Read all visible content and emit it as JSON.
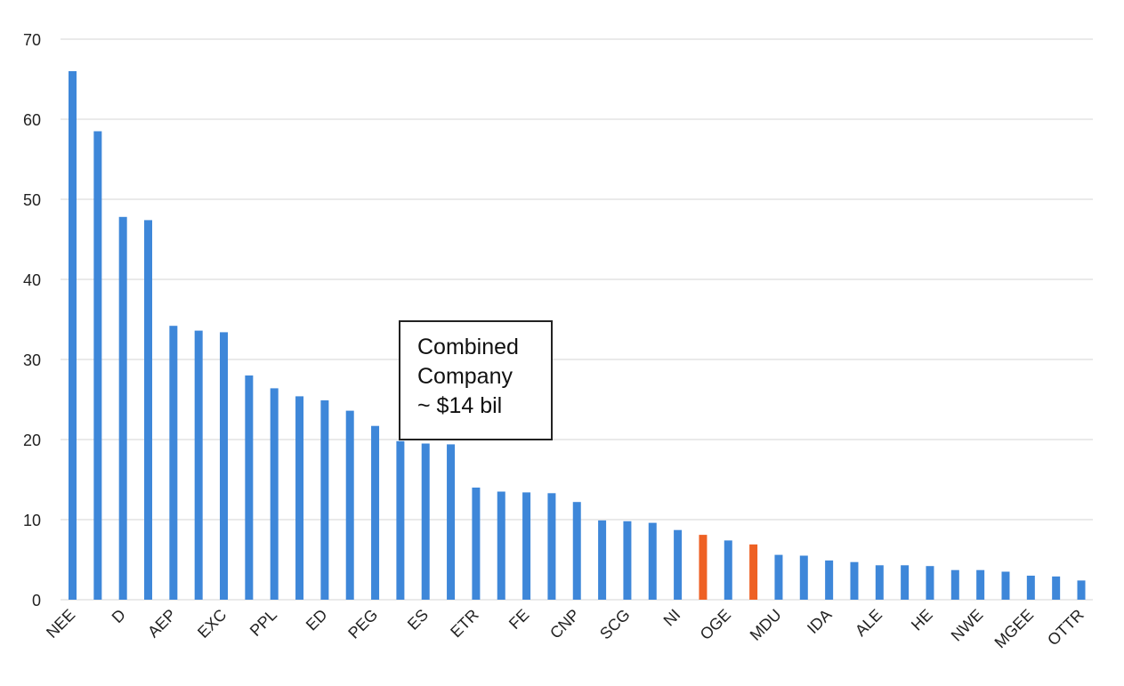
{
  "chart_data": {
    "type": "bar",
    "categories": [
      "NEE",
      "",
      "D",
      "",
      "AEP",
      "",
      "EXC",
      "",
      "PPL",
      "",
      "ED",
      "",
      "PEG",
      "",
      "ES",
      "",
      "ETR",
      "",
      "FE",
      "",
      "CNP",
      "",
      "SCG",
      "",
      "NI",
      "",
      "OGE",
      "",
      "MDU",
      "",
      "IDA",
      "",
      "ALE",
      "",
      "HE",
      "",
      "NWE",
      "",
      "MGEE",
      "",
      "OTTR"
    ],
    "values": [
      66.0,
      58.5,
      47.8,
      47.4,
      34.2,
      33.6,
      33.4,
      28.0,
      26.4,
      25.4,
      24.9,
      23.6,
      21.7,
      19.8,
      19.5,
      19.4,
      14.0,
      13.5,
      13.4,
      13.3,
      12.2,
      9.9,
      9.8,
      9.6,
      8.7,
      8.1,
      7.4,
      6.9,
      5.6,
      5.5,
      4.9,
      4.7,
      4.3,
      4.3,
      4.2,
      3.7,
      3.7,
      3.5,
      3.0,
      2.9,
      2.4
    ],
    "highlighted_indices": [
      25,
      27
    ],
    "colors": {
      "default_bar": "#3e87d9",
      "highlight_bar": "#ee6124",
      "gridline": "#d6d6d6",
      "axis_text": "#222222"
    },
    "ylim": [
      0,
      70
    ],
    "yticks": [
      0,
      10,
      20,
      30,
      40,
      50,
      60,
      70
    ],
    "grid": true,
    "xlabel": "",
    "ylabel": "",
    "title": ""
  },
  "annotation": {
    "lines": [
      "Combined",
      "Company",
      "~ $14 bil"
    ]
  }
}
